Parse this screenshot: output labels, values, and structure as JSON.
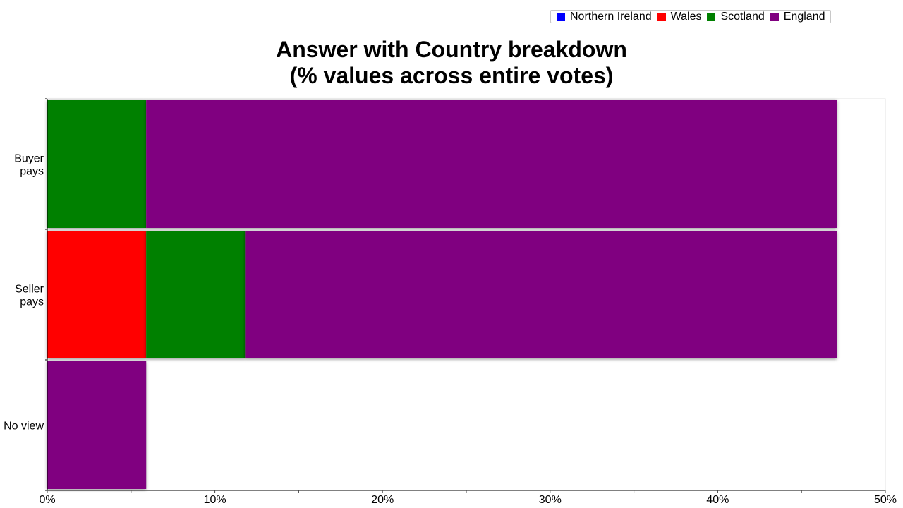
{
  "chart_data": {
    "type": "bar",
    "orientation": "horizontal",
    "stacked": true,
    "title": [
      "Answer with Country breakdown",
      "(% values across entire votes)"
    ],
    "categories": [
      [
        "Buyer",
        "pays"
      ],
      [
        "Seller",
        "pays"
      ],
      [
        "No view"
      ]
    ],
    "series": [
      {
        "name": "Northern Ireland",
        "color": "#0000ff",
        "values": [
          0,
          0,
          0
        ]
      },
      {
        "name": "Wales",
        "color": "#ff0000",
        "values": [
          0,
          5.9,
          0
        ]
      },
      {
        "name": "Scotland",
        "color": "#008000",
        "values": [
          5.9,
          5.9,
          0
        ]
      },
      {
        "name": "England",
        "color": "#800080",
        "values": [
          41.2,
          35.3,
          5.9
        ]
      }
    ],
    "xlim": [
      0,
      50
    ],
    "x_ticks": [
      0,
      10,
      20,
      30,
      40,
      50
    ],
    "x_tick_labels": [
      "0%",
      "10%",
      "20%",
      "30%",
      "40%",
      "50%"
    ],
    "legend_position": "top-right"
  }
}
